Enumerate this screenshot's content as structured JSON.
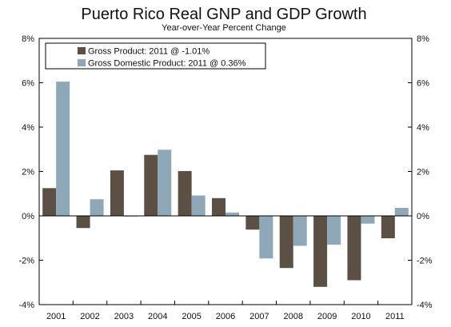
{
  "chart_data": {
    "type": "bar",
    "title": "Puerto Rico Real GNP and GDP Growth",
    "subtitle": "Year-over-Year Percent Change",
    "categories": [
      "2001",
      "2002",
      "2003",
      "2004",
      "2005",
      "2006",
      "2007",
      "2008",
      "2009",
      "2010",
      "2011"
    ],
    "series": [
      {
        "name": "Gross Product:  2011 @ -1.01%",
        "color": "#5c4f44",
        "values": [
          1.25,
          -0.55,
          2.05,
          2.75,
          2.02,
          0.8,
          -0.62,
          -2.35,
          -3.2,
          -2.9,
          -1.01
        ]
      },
      {
        "name": "Gross Domestic Product:  2011 @ 0.36%",
        "color": "#8fa8b8",
        "values": [
          6.05,
          0.75,
          -0.02,
          2.98,
          0.92,
          0.15,
          -1.92,
          -1.35,
          -1.3,
          -0.35,
          0.36
        ]
      }
    ],
    "ylim": [
      -4,
      8
    ],
    "yticks": [
      -4,
      -2,
      0,
      2,
      4,
      6,
      8
    ],
    "ytick_labels": [
      "-4%",
      "-2%",
      "0%",
      "2%",
      "4%",
      "6%",
      "8%"
    ],
    "xlabel": "",
    "ylabel": "",
    "grid": false,
    "legend_position": "top-left"
  }
}
